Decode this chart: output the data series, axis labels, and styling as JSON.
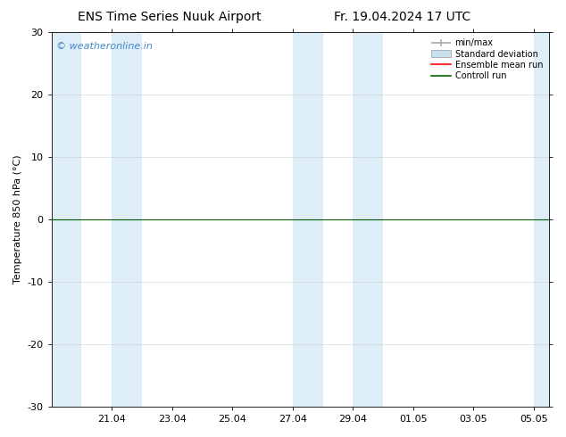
{
  "title_left": "ENS Time Series Nuuk Airport",
  "title_right": "Fr. 19.04.2024 17 UTC",
  "ylabel": "Temperature 850 hPa (°C)",
  "ylim": [
    -30,
    30
  ],
  "yticks": [
    -30,
    -20,
    -10,
    0,
    10,
    20,
    30
  ],
  "xtick_labels": [
    "21.04",
    "23.04",
    "25.04",
    "27.04",
    "29.04",
    "01.05",
    "03.05",
    "05.05"
  ],
  "watermark": "© weatheronline.in",
  "watermark_color": "#4488cc",
  "bg_color": "#ffffff",
  "plot_bg_color": "#ffffff",
  "band_color": "#ddeef8",
  "zero_line_color": "#000000",
  "ensemble_mean_color": "#ff0000",
  "control_run_color": "#006400",
  "legend_minmax_color": "#aaaaaa",
  "legend_stddev_color": "#c8dff0",
  "title_fontsize": 10,
  "axis_fontsize": 8,
  "tick_fontsize": 8
}
